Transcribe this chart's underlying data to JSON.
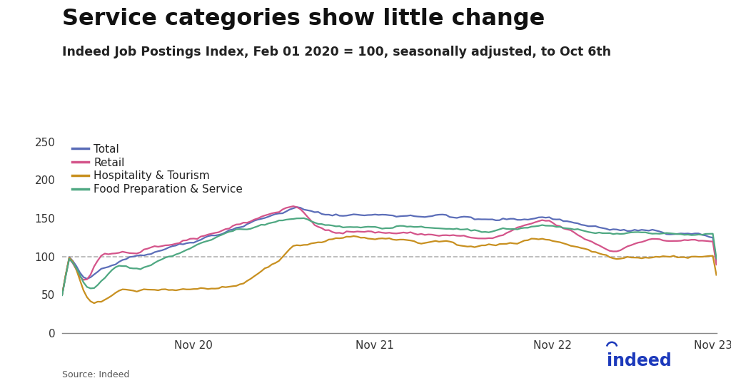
{
  "title": "Service categories show little change",
  "subtitle": "Indeed Job Postings Index, Feb 01 2020 = 100, seasonally adjusted, to Oct 6th",
  "source": "Source: Indeed",
  "ylim": [
    0,
    260
  ],
  "yticks": [
    0,
    50,
    100,
    150,
    200,
    250
  ],
  "reference_line": 100,
  "series": {
    "Total": {
      "color": "#5b6db8",
      "linewidth": 1.6
    },
    "Retail": {
      "color": "#d4548a",
      "linewidth": 1.6
    },
    "Hospitality & Tourism": {
      "color": "#c89020",
      "linewidth": 1.6
    },
    "Food Preparation & Service": {
      "color": "#4fa882",
      "linewidth": 1.6
    }
  },
  "background_color": "#ffffff",
  "title_fontsize": 23,
  "subtitle_fontsize": 12.5,
  "legend_fontsize": 11,
  "axis_fontsize": 11,
  "indeed_color": "#1c39bb",
  "n_points": 185
}
